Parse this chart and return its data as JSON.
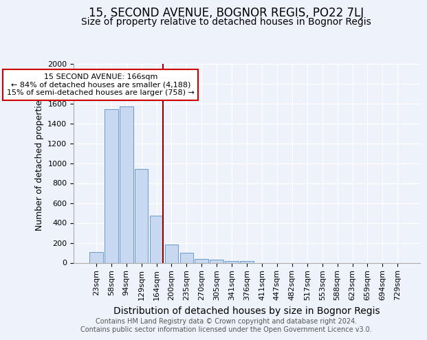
{
  "title": "15, SECOND AVENUE, BOGNOR REGIS, PO22 7LJ",
  "subtitle": "Size of property relative to detached houses in Bognor Regis",
  "xlabel": "Distribution of detached houses by size in Bognor Regis",
  "ylabel": "Number of detached properties",
  "categories": [
    "23sqm",
    "58sqm",
    "94sqm",
    "129sqm",
    "164sqm",
    "200sqm",
    "235sqm",
    "270sqm",
    "305sqm",
    "341sqm",
    "376sqm",
    "411sqm",
    "447sqm",
    "482sqm",
    "517sqm",
    "553sqm",
    "588sqm",
    "623sqm",
    "659sqm",
    "694sqm",
    "729sqm"
  ],
  "values": [
    110,
    1540,
    1570,
    940,
    470,
    185,
    100,
    40,
    30,
    15,
    20,
    0,
    0,
    0,
    0,
    0,
    0,
    0,
    0,
    0,
    0
  ],
  "bar_color": "#c8d8f0",
  "bar_edge_color": "#6699cc",
  "property_line_index": 4,
  "property_line_color": "#8b0000",
  "annotation_text": "15 SECOND AVENUE: 166sqm\n← 84% of detached houses are smaller (4,188)\n15% of semi-detached houses are larger (758) →",
  "annotation_box_color": "white",
  "annotation_box_edge": "#cc0000",
  "ylim": [
    0,
    2000
  ],
  "yticks": [
    0,
    200,
    400,
    600,
    800,
    1000,
    1200,
    1400,
    1600,
    1800,
    2000
  ],
  "title_fontsize": 12,
  "subtitle_fontsize": 10,
  "xlabel_fontsize": 10,
  "ylabel_fontsize": 9,
  "tick_fontsize": 8,
  "annotation_fontsize": 8,
  "footer_text": "Contains HM Land Registry data © Crown copyright and database right 2024.\nContains public sector information licensed under the Open Government Licence v3.0.",
  "footer_fontsize": 7,
  "background_color": "#eef2fa"
}
